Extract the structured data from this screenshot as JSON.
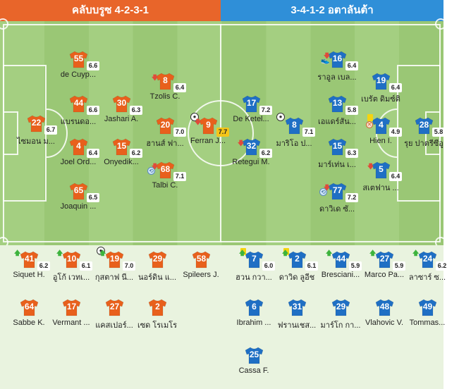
{
  "header": {
    "home_label": "คลับบรูซ 4-2-3-1",
    "away_label": "3-4-1-2 อตาลันต้า"
  },
  "colors": {
    "home": "#e8652a",
    "away": "#2f8fd8",
    "home_shirt": "#e8601c",
    "away_shirt": "#1f6fc4",
    "rating_highlight": "#f5c518"
  },
  "home_lineup": [
    {
      "num": "22",
      "name": "ไซมอน ม...",
      "rating": "6.7"
    },
    {
      "num": "55",
      "name": "de Cuyp...",
      "rating": "6.6"
    },
    {
      "num": "44",
      "name": "แบรนดอ...",
      "rating": "6.6"
    },
    {
      "num": "4",
      "name": "Joel Ord...",
      "rating": "6.4"
    },
    {
      "num": "65",
      "name": "Joaquin ...",
      "rating": "6.5"
    },
    {
      "num": "30",
      "name": "Jashari A.",
      "rating": "6.3"
    },
    {
      "num": "15",
      "name": "Onyedik...",
      "rating": "6.2"
    },
    {
      "num": "8",
      "name": "Tzolis C.",
      "rating": "6.4",
      "icons": [
        "down-arrow-icon"
      ]
    },
    {
      "num": "20",
      "name": "ฮานส์ ฟา...",
      "rating": "7.0"
    },
    {
      "num": "68",
      "name": "Talbi C.",
      "rating": "7.1",
      "icons": [
        "sub-clock-icon",
        "down-arrow-icon"
      ]
    },
    {
      "num": "9",
      "name": "Ferran J...",
      "rating": "7.7",
      "highlight": true,
      "icons": [
        "goal-ball-icon",
        "down-arrow-icon"
      ]
    }
  ],
  "away_lineup": [
    {
      "num": "17",
      "name": "De Ketel...",
      "rating": "7.2"
    },
    {
      "num": "32",
      "name": "Retegui M.",
      "rating": "6.2",
      "icons": [
        "down-arrow-icon"
      ]
    },
    {
      "num": "8",
      "name": "มาริโอ ป...",
      "rating": "7.1",
      "icons": [
        "goal-ball-icon"
      ]
    },
    {
      "num": "16",
      "name": "ราอูล เบล...",
      "rating": "6.4",
      "icons": [
        "down-arrow-icon",
        "assist-icon"
      ]
    },
    {
      "num": "13",
      "name": "เอแดร์สัน...",
      "rating": "5.8"
    },
    {
      "num": "15",
      "name": "มาร์เท่น เ...",
      "rating": "6.3"
    },
    {
      "num": "77",
      "name": "ดาวิเด ซั...",
      "rating": "7.2",
      "icons": [
        "sub-clock-icon",
        "down-arrow-icon"
      ]
    },
    {
      "num": "19",
      "name": "เบรัต ดิมซ์ติ",
      "rating": "6.4"
    },
    {
      "num": "4",
      "name": "Hien I.",
      "rating": "4.9",
      "icons": [
        "yellow-card-icon",
        "missed-icon"
      ]
    },
    {
      "num": "5",
      "name": "สเตฟาน ...",
      "rating": "6.4",
      "icons": [
        "down-arrow-icon"
      ]
    },
    {
      "num": "28",
      "name": "รุย ปาตรีซีอู",
      "rating": "5.8"
    }
  ],
  "home_bench": [
    {
      "num": "41",
      "name": "Siquet H.",
      "rating": "6.2",
      "icons": [
        "up-arrow-icon"
      ]
    },
    {
      "num": "10",
      "name": "อูโก้ เวทเ...",
      "rating": "6.1",
      "icons": [
        "up-arrow-icon"
      ]
    },
    {
      "num": "19",
      "name": "กุสตาฟ นี...",
      "rating": "7.0",
      "icons": [
        "goal-ball-icon",
        "up-arrow-icon"
      ]
    },
    {
      "num": "29",
      "name": "นอร์ดิน แ...",
      "rating": ""
    },
    {
      "num": "58",
      "name": "Spileers J.",
      "rating": ""
    },
    {
      "num": "64",
      "name": "Sabbe K.",
      "rating": ""
    },
    {
      "num": "17",
      "name": "Vermant ...",
      "rating": ""
    },
    {
      "num": "27",
      "name": "แคสเปอร์...",
      "rating": ""
    },
    {
      "num": "2",
      "name": "เซด โรเมโร",
      "rating": ""
    }
  ],
  "away_bench": [
    {
      "num": "7",
      "name": "ฮวน กวา...",
      "rating": "6.0",
      "icons": [
        "yellow-card-icon",
        "up-arrow-icon"
      ]
    },
    {
      "num": "2",
      "name": "ดาวิด ลูอีช",
      "rating": "6.1",
      "icons": [
        "yellow-card-icon",
        "up-arrow-icon"
      ]
    },
    {
      "num": "44",
      "name": "Bresciani...",
      "rating": "5.9",
      "icons": [
        "up-arrow-icon"
      ]
    },
    {
      "num": "27",
      "name": "Marco Pa...",
      "rating": "5.9",
      "icons": [
        "up-arrow-icon"
      ]
    },
    {
      "num": "24",
      "name": "ลาซาร์ ซ...",
      "rating": "6.2",
      "icons": [
        "up-arrow-icon"
      ]
    },
    {
      "num": "6",
      "name": "Ibrahim ...",
      "rating": ""
    },
    {
      "num": "31",
      "name": "ฟรานเชส...",
      "rating": ""
    },
    {
      "num": "29",
      "name": "มาร์โก กา...",
      "rating": ""
    },
    {
      "num": "48",
      "name": "Vlahovic V.",
      "rating": ""
    },
    {
      "num": "49",
      "name": "Tommas...",
      "rating": ""
    },
    {
      "num": "25",
      "name": "Cassa F.",
      "rating": ""
    }
  ]
}
